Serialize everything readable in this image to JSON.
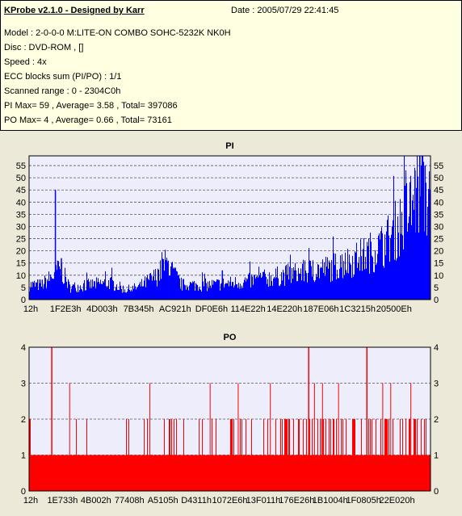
{
  "info": {
    "title": "KProbe v2.1.0 - Designed by Karr",
    "date": "Date : 2005/07/29 22:41:45",
    "lines": [
      "Model : 2-0-0-0 M:LITE-ON COMBO SOHC-5232K NK0H",
      "Disc : DVD-ROM ,  []",
      "Speed : 4x",
      "ECC blocks sum (PI/PO) : 1/1",
      "Scanned range : 0 - 2304C0h",
      "PI Max= 59 , Average= 3.58 , Total= 397086",
      "PO Max= 4 , Average= 0.66 , Total= 73161"
    ]
  },
  "chart_data": [
    {
      "type": "bar",
      "title": "PI",
      "ylim": [
        0,
        59
      ],
      "yticks": [
        0,
        5,
        10,
        15,
        20,
        25,
        30,
        35,
        40,
        45,
        50,
        55
      ],
      "xticks": [
        "12h",
        "1F2E3h",
        "4D003h",
        "7B345h",
        "AC921h",
        "DF0E6h",
        "114E22h",
        "14E220h",
        "187E06h",
        "1C3215h",
        "20500Eh"
      ],
      "grid": true,
      "color": "#0000ff",
      "background": "#ededfc",
      "profile_x": [
        0,
        0.03,
        0.06,
        0.08,
        0.1,
        0.2,
        0.24,
        0.27,
        0.32,
        0.34,
        0.38,
        0.45,
        0.52,
        0.6,
        0.67,
        0.75,
        0.82,
        0.88,
        0.92,
        0.95,
        0.97,
        0.99,
        1.0
      ],
      "profile_y": [
        6,
        6,
        10,
        12,
        5,
        7,
        4,
        5,
        10,
        15,
        6,
        6,
        7,
        9,
        11,
        13,
        17,
        22,
        30,
        38,
        45,
        42,
        36
      ],
      "spikes": [
        {
          "x": 0.064,
          "y": 45
        },
        {
          "x": 0.079,
          "y": 17
        },
        {
          "x": 0.07,
          "y": 16
        },
        {
          "x": 0.33,
          "y": 17
        },
        {
          "x": 0.345,
          "y": 16
        },
        {
          "x": 0.48,
          "y": 12
        },
        {
          "x": 0.96,
          "y": 53
        },
        {
          "x": 0.972,
          "y": 59
        },
        {
          "x": 0.979,
          "y": 59
        },
        {
          "x": 0.985,
          "y": 55
        }
      ]
    },
    {
      "type": "bar",
      "title": "PO",
      "ylim": [
        0,
        4
      ],
      "yticks": [
        0,
        1,
        2,
        3,
        4
      ],
      "xticks": [
        "12h",
        "1E733h",
        "4B002h",
        "77408h",
        "A5105h",
        "D4311h",
        "1072E6h",
        "13F011h",
        "176E26h",
        "1B1004h",
        "1F0805h",
        "22E020h"
      ],
      "grid": true,
      "color": "#ff0000",
      "background": "#ededfc",
      "baseline": 1,
      "spikes4": [
        0.055,
        0.695,
        0.84
      ],
      "spikes3": [
        0.1,
        0.3,
        0.45,
        0.52,
        0.6,
        0.71,
        0.73,
        0.77,
        0.88,
        0.9,
        0.95
      ]
    }
  ]
}
